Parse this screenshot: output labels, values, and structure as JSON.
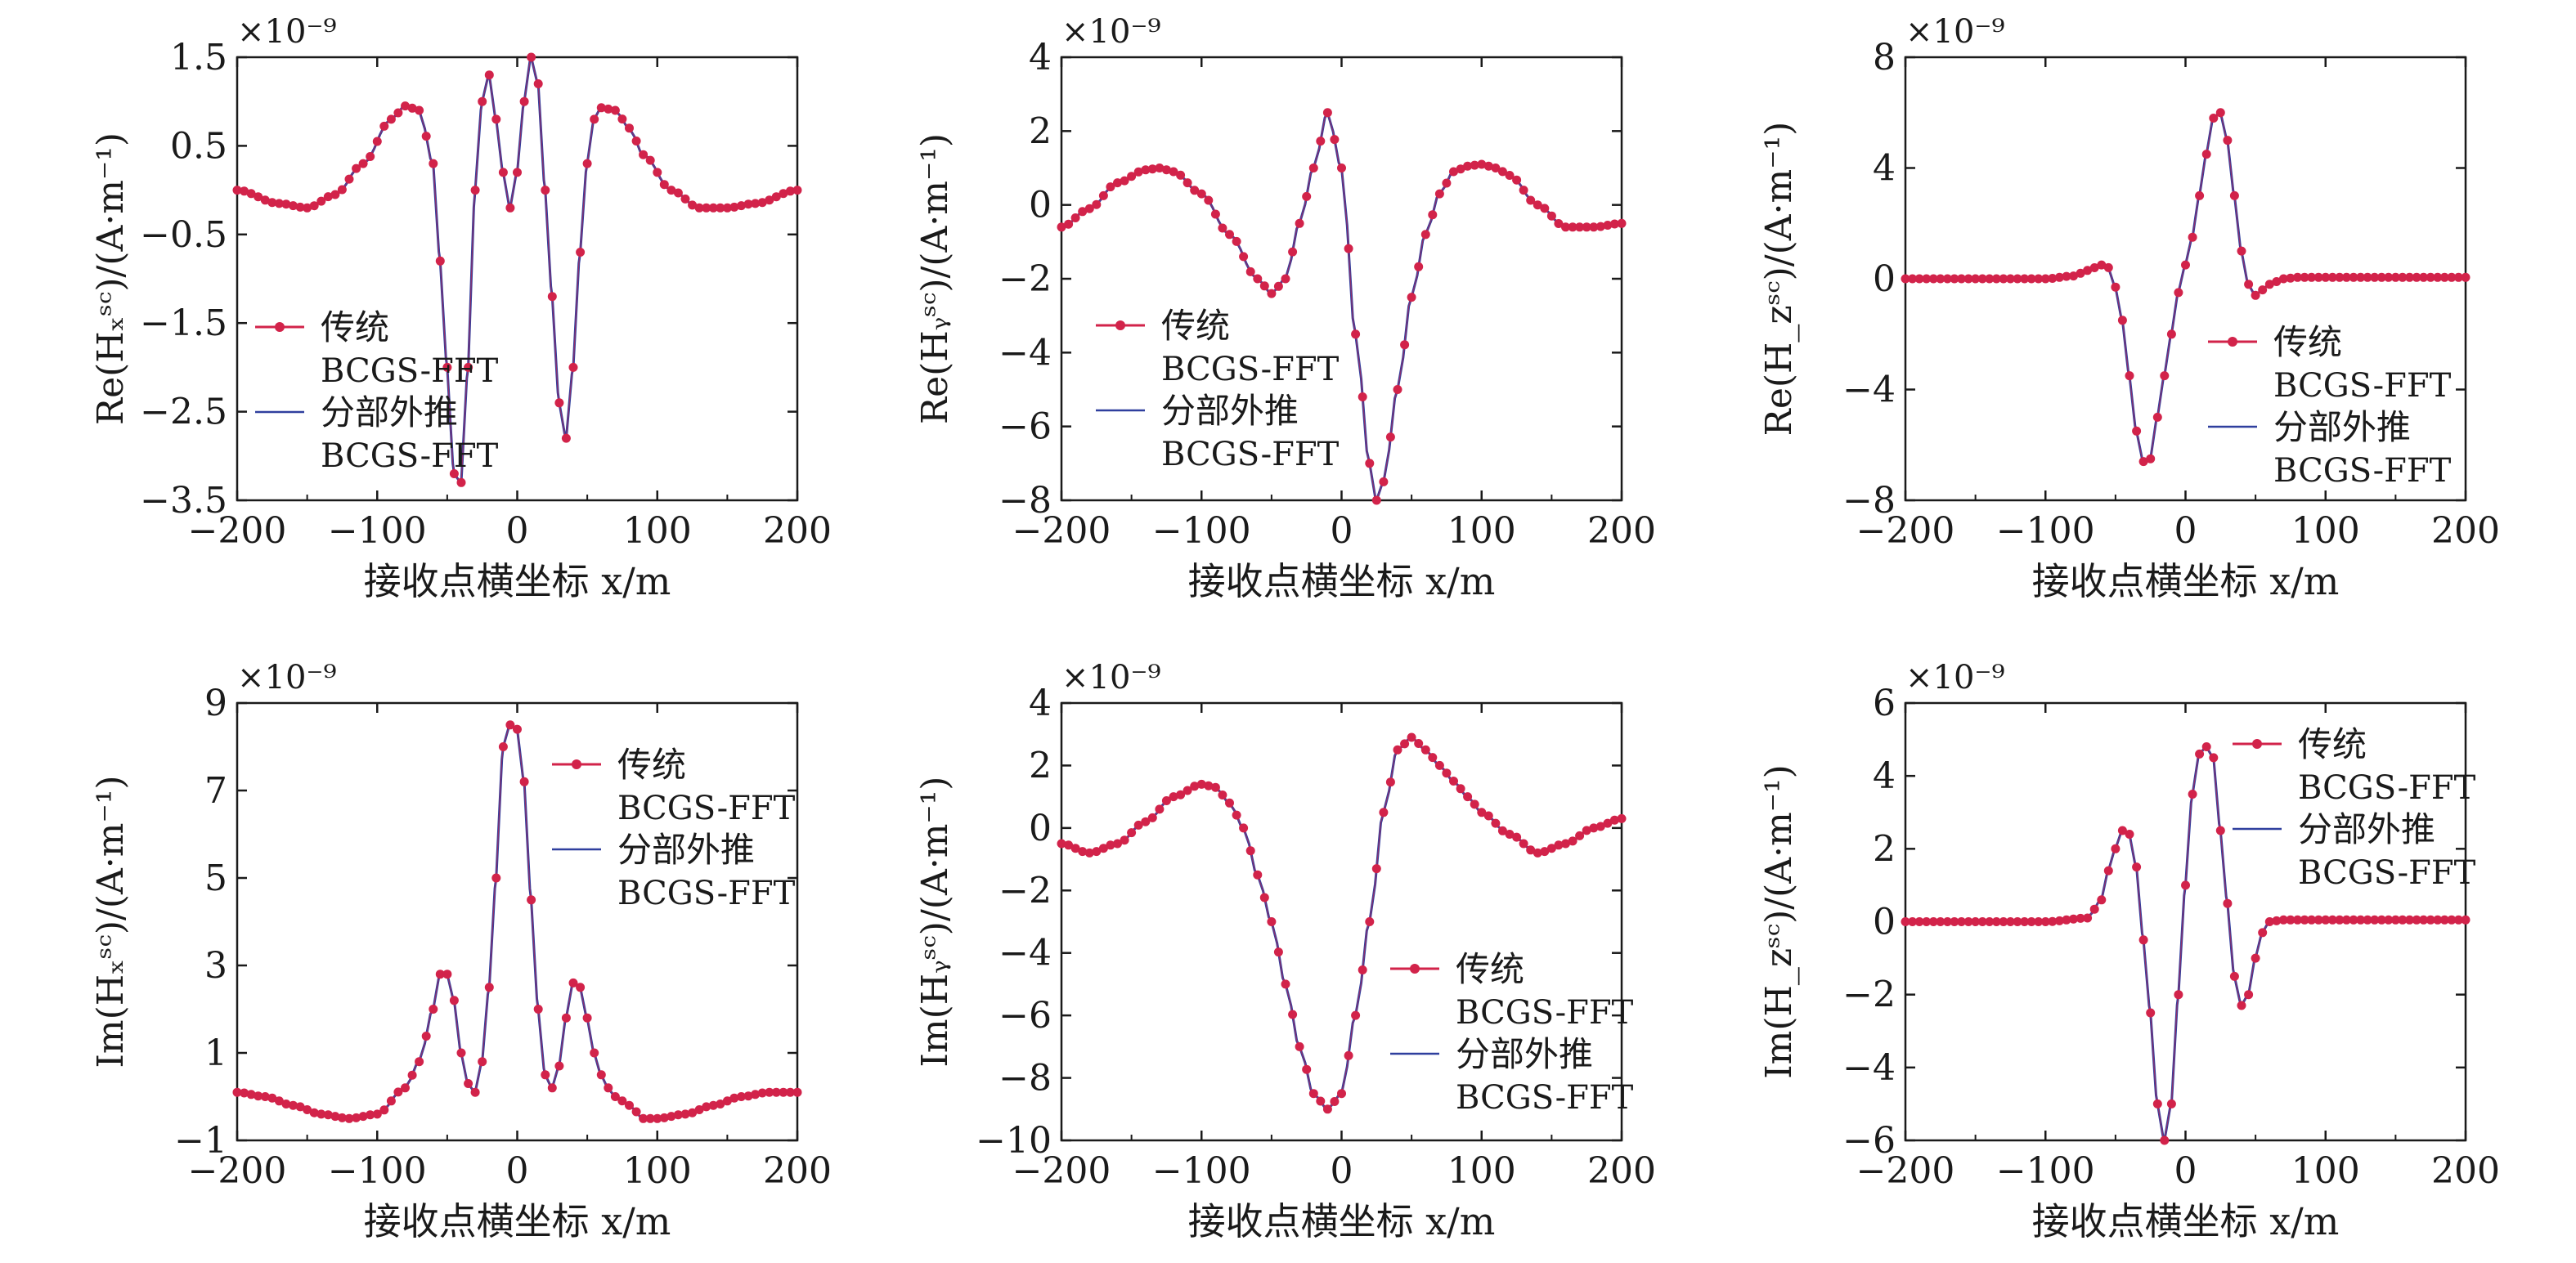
{
  "figure": {
    "colors": {
      "series_a": "#d2234a",
      "series_b": "#2f3f9e",
      "axis": "#1a1a1a"
    },
    "multiplier_label": "×10⁻⁹",
    "xlabel": "接收点横坐标 x/m",
    "legend_labels": [
      "传统",
      "BCGS-FFT",
      "分部外推",
      "BCGS-FFT"
    ]
  },
  "chart_data": [
    {
      "type": "line",
      "panel": "top-left",
      "ylabel": "Re(Hₓˢᶜ)/(A·m⁻¹)",
      "xlabel": "接收点横坐标 x/m",
      "xlim": [
        -200,
        200
      ],
      "ylim": [
        -3.5,
        1.5
      ],
      "xticks": [
        -200,
        -100,
        0,
        100,
        200
      ],
      "yticks": [
        -3.5,
        -2.5,
        -1.5,
        -0.5,
        0.5,
        1.5
      ],
      "ytick_labels": [
        "−3.5",
        "−2.5",
        "−1.5",
        "−0.5",
        "0.5",
        "1.5"
      ],
      "multiplier": "×10⁻⁹",
      "legend_position": "left",
      "series": [
        {
          "name": "传统 BCGS-FFT",
          "style": "line-with-markers",
          "color": "#d2234a"
        },
        {
          "name": "分部外推 BCGS-FFT",
          "style": "line",
          "color": "#2f3f9e"
        }
      ],
      "x": [
        -200,
        -170,
        -150,
        -130,
        -110,
        -90,
        -80,
        -70,
        -60,
        -55,
        -50,
        -45,
        -40,
        -35,
        -30,
        -25,
        -20,
        -15,
        -10,
        -5,
        0,
        5,
        10,
        15,
        20,
        25,
        30,
        35,
        40,
        45,
        50,
        55,
        60,
        70,
        80,
        90,
        110,
        130,
        150,
        170,
        200
      ],
      "values": [
        0.0,
        -0.15,
        -0.2,
        -0.05,
        0.3,
        0.8,
        0.95,
        0.9,
        0.3,
        -0.8,
        -2.0,
        -3.2,
        -3.3,
        -2.0,
        0.0,
        1.0,
        1.3,
        0.8,
        0.2,
        -0.2,
        0.2,
        1.0,
        1.5,
        1.2,
        0.0,
        -1.2,
        -2.4,
        -2.8,
        -2.0,
        -0.7,
        0.3,
        0.8,
        0.93,
        0.9,
        0.7,
        0.4,
        0.0,
        -0.2,
        -0.2,
        -0.15,
        0.0
      ]
    },
    {
      "type": "line",
      "panel": "top-middle",
      "ylabel": "Re(Hᵧˢᶜ)/(A·m⁻¹)",
      "xlabel": "接收点横坐标 x/m",
      "xlim": [
        -200,
        200
      ],
      "ylim": [
        -8,
        4
      ],
      "xticks": [
        -200,
        -100,
        0,
        100,
        200
      ],
      "yticks": [
        -8,
        -6,
        -4,
        -2,
        0,
        2,
        4
      ],
      "ytick_labels": [
        "−8",
        "−6",
        "−4",
        "−2",
        "0",
        "2",
        "4"
      ],
      "multiplier": "×10⁻⁹",
      "legend_position": "left",
      "series": [
        {
          "name": "传统 BCGS-FFT",
          "style": "line-with-markers",
          "color": "#d2234a"
        },
        {
          "name": "分部外推 BCGS-FFT",
          "style": "line",
          "color": "#2f3f9e"
        }
      ],
      "x": [
        -200,
        -180,
        -160,
        -140,
        -130,
        -120,
        -100,
        -80,
        -60,
        -50,
        -40,
        -30,
        -20,
        -10,
        0,
        10,
        20,
        25,
        30,
        40,
        50,
        60,
        70,
        80,
        90,
        100,
        110,
        120,
        140,
        160,
        180,
        200
      ],
      "values": [
        -0.6,
        -0.1,
        0.6,
        0.95,
        1.0,
        0.9,
        0.3,
        -0.8,
        -2.0,
        -2.4,
        -2.0,
        -0.5,
        1.0,
        2.5,
        1.0,
        -3.5,
        -7.0,
        -8.0,
        -7.5,
        -5.0,
        -2.5,
        -0.8,
        0.3,
        0.9,
        1.05,
        1.1,
        1.0,
        0.8,
        0.0,
        -0.6,
        -0.6,
        -0.5
      ]
    },
    {
      "type": "line",
      "panel": "top-right",
      "ylabel": "Re(H_zˢᶜ)/(A·m⁻¹)",
      "xlabel": "接收点横坐标 x/m",
      "xlim": [
        -200,
        200
      ],
      "ylim": [
        -8,
        8
      ],
      "xticks": [
        -200,
        -100,
        0,
        100,
        200
      ],
      "yticks": [
        -8,
        -4,
        0,
        4,
        8
      ],
      "ytick_labels": [
        "−8",
        "−4",
        "0",
        "4",
        "8"
      ],
      "multiplier": "×10⁻⁹",
      "legend_position": "right",
      "series": [
        {
          "name": "传统 BCGS-FFT",
          "style": "line-with-markers",
          "color": "#d2234a"
        },
        {
          "name": "分部外推 BCGS-FFT",
          "style": "line",
          "color": "#2f3f9e"
        }
      ],
      "x": [
        -200,
        -100,
        -80,
        -70,
        -60,
        -55,
        -50,
        -45,
        -40,
        -35,
        -30,
        -25,
        -20,
        -15,
        -10,
        -5,
        0,
        5,
        10,
        15,
        20,
        25,
        30,
        35,
        40,
        45,
        50,
        55,
        60,
        70,
        80,
        100,
        200
      ],
      "values": [
        0.0,
        0.0,
        0.1,
        0.3,
        0.5,
        0.4,
        -0.3,
        -1.5,
        -3.5,
        -5.5,
        -6.6,
        -6.5,
        -5.0,
        -3.5,
        -2.0,
        -0.5,
        0.5,
        1.5,
        3.0,
        4.5,
        5.8,
        6.0,
        5.0,
        3.0,
        1.0,
        -0.2,
        -0.6,
        -0.4,
        -0.2,
        0.0,
        0.05,
        0.05,
        0.05
      ]
    },
    {
      "type": "line",
      "panel": "bottom-left",
      "ylabel": "Im(Hₓˢᶜ)/(A·m⁻¹)",
      "xlabel": "接收点横坐标 x/m",
      "xlim": [
        -200,
        200
      ],
      "ylim": [
        -1,
        9
      ],
      "xticks": [
        -200,
        -100,
        0,
        100,
        200
      ],
      "yticks": [
        -1,
        1,
        3,
        5,
        7,
        9
      ],
      "ytick_labels": [
        "−1",
        "1",
        "3",
        "5",
        "7",
        "9"
      ],
      "multiplier": "×10⁻⁹",
      "legend_position": "right",
      "series": [
        {
          "name": "传统 BCGS-FFT",
          "style": "line-with-markers",
          "color": "#d2234a"
        },
        {
          "name": "分部外推 BCGS-FFT",
          "style": "line",
          "color": "#2f3f9e"
        }
      ],
      "x": [
        -200,
        -180,
        -160,
        -140,
        -120,
        -100,
        -80,
        -70,
        -60,
        -55,
        -50,
        -45,
        -40,
        -35,
        -30,
        -25,
        -20,
        -15,
        -10,
        -5,
        0,
        5,
        10,
        15,
        20,
        25,
        30,
        35,
        40,
        45,
        50,
        55,
        60,
        65,
        70,
        80,
        90,
        100,
        120,
        140,
        160,
        180,
        200
      ],
      "values": [
        0.1,
        0.0,
        -0.2,
        -0.4,
        -0.5,
        -0.4,
        0.2,
        0.8,
        2.0,
        2.8,
        2.8,
        2.2,
        1.0,
        0.3,
        0.1,
        0.8,
        2.5,
        5.0,
        8.0,
        8.5,
        8.4,
        7.2,
        4.5,
        2.0,
        0.5,
        0.2,
        0.7,
        1.8,
        2.6,
        2.5,
        1.8,
        1.0,
        0.5,
        0.2,
        0.0,
        -0.2,
        -0.5,
        -0.5,
        -0.4,
        -0.2,
        0.0,
        0.1,
        0.1
      ]
    },
    {
      "type": "line",
      "panel": "bottom-middle",
      "ylabel": "Im(Hᵧˢᶜ)/(A·m⁻¹)",
      "xlabel": "接收点横坐标 x/m",
      "xlim": [
        -200,
        200
      ],
      "ylim": [
        -10,
        4
      ],
      "xticks": [
        -200,
        -100,
        0,
        100,
        200
      ],
      "yticks": [
        -10,
        -8,
        -6,
        -4,
        -2,
        0,
        2,
        4
      ],
      "ytick_labels": [
        "−10",
        "−8",
        "−6",
        "−4",
        "−2",
        "0",
        "2",
        "4"
      ],
      "multiplier": "×10⁻⁹",
      "legend_position": "right",
      "series": [
        {
          "name": "传统 BCGS-FFT",
          "style": "line-with-markers",
          "color": "#d2234a"
        },
        {
          "name": "分部外推 BCGS-FFT",
          "style": "line",
          "color": "#2f3f9e"
        }
      ],
      "x": [
        -200,
        -180,
        -160,
        -140,
        -120,
        -100,
        -90,
        -80,
        -70,
        -60,
        -50,
        -40,
        -30,
        -20,
        -10,
        0,
        10,
        20,
        30,
        40,
        50,
        60,
        70,
        80,
        90,
        100,
        120,
        140,
        160,
        180,
        200
      ],
      "values": [
        -0.5,
        -0.8,
        -0.5,
        0.2,
        1.0,
        1.4,
        1.3,
        0.8,
        0.0,
        -1.5,
        -3.0,
        -5.0,
        -7.0,
        -8.5,
        -9.0,
        -8.5,
        -6.0,
        -3.0,
        0.5,
        2.5,
        2.9,
        2.5,
        2.0,
        1.5,
        1.0,
        0.5,
        -0.2,
        -0.8,
        -0.5,
        0.0,
        0.3
      ]
    },
    {
      "type": "line",
      "panel": "bottom-right",
      "ylabel": "Im(H_zˢᶜ)/(A·m⁻¹)",
      "xlabel": "接收点横坐标 x/m",
      "xlim": [
        -200,
        200
      ],
      "ylim": [
        -6,
        6
      ],
      "xticks": [
        -200,
        -100,
        0,
        100,
        200
      ],
      "yticks": [
        -6,
        -4,
        -2,
        0,
        2,
        4,
        6
      ],
      "ytick_labels": [
        "−6",
        "−4",
        "−2",
        "0",
        "2",
        "4",
        "6"
      ],
      "multiplier": "×10⁻⁹",
      "legend_position": "top-right",
      "series": [
        {
          "name": "传统 BCGS-FFT",
          "style": "line-with-markers",
          "color": "#d2234a"
        },
        {
          "name": "分部外推 BCGS-FFT",
          "style": "line",
          "color": "#2f3f9e"
        }
      ],
      "x": [
        -200,
        -100,
        -70,
        -60,
        -55,
        -50,
        -45,
        -40,
        -35,
        -30,
        -25,
        -20,
        -15,
        -10,
        -5,
        0,
        5,
        10,
        15,
        20,
        25,
        30,
        35,
        40,
        45,
        50,
        55,
        60,
        70,
        80,
        100,
        200
      ],
      "values": [
        0.0,
        0.0,
        0.1,
        0.6,
        1.4,
        2.0,
        2.5,
        2.4,
        1.5,
        -0.5,
        -2.5,
        -5.0,
        -6.0,
        -5.0,
        -2.0,
        1.0,
        3.5,
        4.6,
        4.8,
        4.5,
        2.5,
        0.5,
        -1.5,
        -2.3,
        -2.0,
        -1.0,
        -0.3,
        0.0,
        0.05,
        0.05,
        0.05,
        0.05
      ]
    }
  ]
}
